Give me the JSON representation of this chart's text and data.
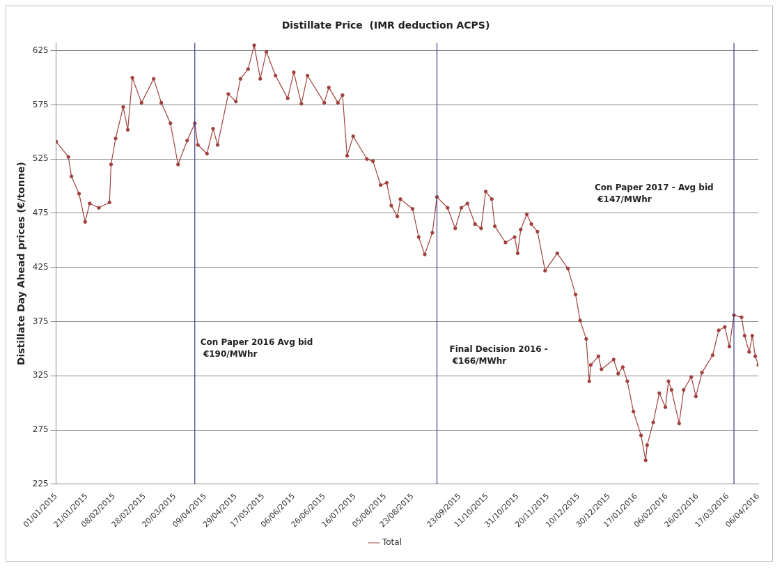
{
  "chart_data": {
    "type": "line",
    "title": "Distillate Price  (IMR deduction ACPS)",
    "ylabel": "Distillate Day Ahead prices (€/tonne)",
    "x": [
      "2015-01-01",
      "2015-01-09",
      "2015-01-11",
      "2015-01-16",
      "2015-01-20",
      "2015-01-23",
      "2015-01-29",
      "2015-02-05",
      "2015-02-06",
      "2015-02-09",
      "2015-02-14",
      "2015-02-17",
      "2015-02-20",
      "2015-02-26",
      "2015-03-06",
      "2015-03-11",
      "2015-03-17",
      "2015-03-22",
      "2015-03-28",
      "2015-04-02",
      "2015-04-04",
      "2015-04-10",
      "2015-04-14",
      "2015-04-17",
      "2015-04-24",
      "2015-04-29",
      "2015-05-02",
      "2015-05-07",
      "2015-05-11",
      "2015-05-15",
      "2015-05-19",
      "2015-05-25",
      "2015-06-02",
      "2015-06-06",
      "2015-06-11",
      "2015-06-15",
      "2015-06-26",
      "2015-06-29",
      "2015-07-05",
      "2015-07-08",
      "2015-07-11",
      "2015-07-15",
      "2015-07-24",
      "2015-07-28",
      "2015-08-02",
      "2015-08-06",
      "2015-08-09",
      "2015-08-13",
      "2015-08-15",
      "2015-08-23",
      "2015-08-27",
      "2015-08-31",
      "2015-09-05",
      "2015-09-08",
      "2015-09-15",
      "2015-09-20",
      "2015-09-24",
      "2015-09-28",
      "2015-10-03",
      "2015-10-07",
      "2015-10-10",
      "2015-10-14",
      "2015-10-16",
      "2015-10-23",
      "2015-10-29",
      "2015-10-31",
      "2015-11-02",
      "2015-11-06",
      "2015-11-09",
      "2015-11-13",
      "2015-11-18",
      "2015-11-26",
      "2015-12-03",
      "2015-12-08",
      "2015-12-11",
      "2015-12-15",
      "2015-12-17",
      "2015-12-18",
      "2015-12-23",
      "2015-12-25",
      "2016-01-02",
      "2016-01-05",
      "2016-01-08",
      "2016-01-11",
      "2016-01-15",
      "2016-01-20",
      "2016-01-23",
      "2016-01-24",
      "2016-01-28",
      "2016-02-01",
      "2016-02-05",
      "2016-02-07",
      "2016-02-09",
      "2016-02-14",
      "2016-02-17",
      "2016-02-22",
      "2016-02-25",
      "2016-02-29",
      "2016-03-07",
      "2016-03-11",
      "2016-03-15",
      "2016-03-18",
      "2016-03-21",
      "2016-03-26",
      "2016-03-28",
      "2016-03-31",
      "2016-04-02",
      "2016-04-04",
      "2016-04-06"
    ],
    "series": [
      {
        "name": "Total",
        "color": "#a0413c",
        "values": [
          541,
          527,
          509,
          493,
          467,
          484,
          480,
          485,
          520,
          544,
          573,
          552,
          600,
          577,
          599,
          577,
          558,
          520,
          542,
          558,
          538,
          530,
          553,
          538,
          585,
          578,
          599,
          608,
          630,
          599,
          624,
          602,
          581,
          605,
          576,
          602,
          577,
          591,
          577,
          584,
          528,
          546,
          525,
          523,
          501,
          503,
          482,
          472,
          488,
          479,
          453,
          437,
          457,
          490,
          480,
          461,
          480,
          484,
          465,
          461,
          495,
          488,
          463,
          448,
          453,
          438,
          460,
          474,
          465,
          458,
          422,
          438,
          424,
          400,
          376,
          359,
          320,
          335,
          343,
          331,
          340,
          327,
          333,
          320,
          292,
          270,
          247,
          261,
          282,
          309,
          296,
          320,
          312,
          281,
          312,
          324,
          306,
          328,
          344,
          367,
          370,
          352,
          381,
          379,
          362,
          347,
          362,
          343,
          335
        ]
      }
    ],
    "xlim": [
      "2015-01-01",
      "2016-04-06"
    ],
    "xticks": [
      {
        "value": "2015-01-01",
        "label": "01/01/2015"
      },
      {
        "value": "2015-01-21",
        "label": "21/01/2015"
      },
      {
        "value": "2015-02-08",
        "label": "08/02/2015"
      },
      {
        "value": "2015-02-28",
        "label": "28/02/2015"
      },
      {
        "value": "2015-03-20",
        "label": "20/03/2015"
      },
      {
        "value": "2015-04-09",
        "label": "09/04/2015"
      },
      {
        "value": "2015-04-29",
        "label": "29/04/2015"
      },
      {
        "value": "2015-05-17",
        "label": "17/05/2015"
      },
      {
        "value": "2015-06-06",
        "label": "06/06/2015"
      },
      {
        "value": "2015-06-26",
        "label": "26/06/2015"
      },
      {
        "value": "2015-07-16",
        "label": "16/07/2015"
      },
      {
        "value": "2015-08-05",
        "label": "05/08/2015"
      },
      {
        "value": "2015-08-23",
        "label": "23/08/2015"
      },
      {
        "value": "2015-09-23",
        "label": "23/09/2015"
      },
      {
        "value": "2015-10-11",
        "label": "11/10/2015"
      },
      {
        "value": "2015-10-31",
        "label": "31/10/2015"
      },
      {
        "value": "2015-11-20",
        "label": "20/11/2015"
      },
      {
        "value": "2015-12-10",
        "label": "10/12/2015"
      },
      {
        "value": "2015-12-30",
        "label": "30/12/2015"
      },
      {
        "value": "2016-01-17",
        "label": "17/01/2016"
      },
      {
        "value": "2016-02-06",
        "label": "06/02/2016"
      },
      {
        "value": "2016-02-26",
        "label": "26/02/2016"
      },
      {
        "value": "2016-03-17",
        "label": "17/03/2016"
      },
      {
        "value": "2016-04-06",
        "label": "06/04/2016"
      }
    ],
    "ylim": [
      225,
      632
    ],
    "yticks": [
      225,
      275,
      325,
      375,
      425,
      475,
      525,
      575,
      625
    ],
    "grid": "y",
    "legend": "bottom",
    "marker": "circle",
    "line_style": "solid",
    "ref_lines": [
      {
        "axis": "x",
        "value": "2015-04-02",
        "color": "#3c3c8c"
      },
      {
        "axis": "x",
        "value": "2015-09-08",
        "color": "#3c3c8c"
      },
      {
        "axis": "x",
        "value": "2016-03-21",
        "color": "#3c3c8c"
      }
    ],
    "annotations": [
      "Con Paper 2016 Avg bid\n €190/MWhr",
      "Final Decision 2016 -\n €166/MWhr",
      "Con Paper 2017 - Avg bid\n €147/MWhr"
    ]
  }
}
